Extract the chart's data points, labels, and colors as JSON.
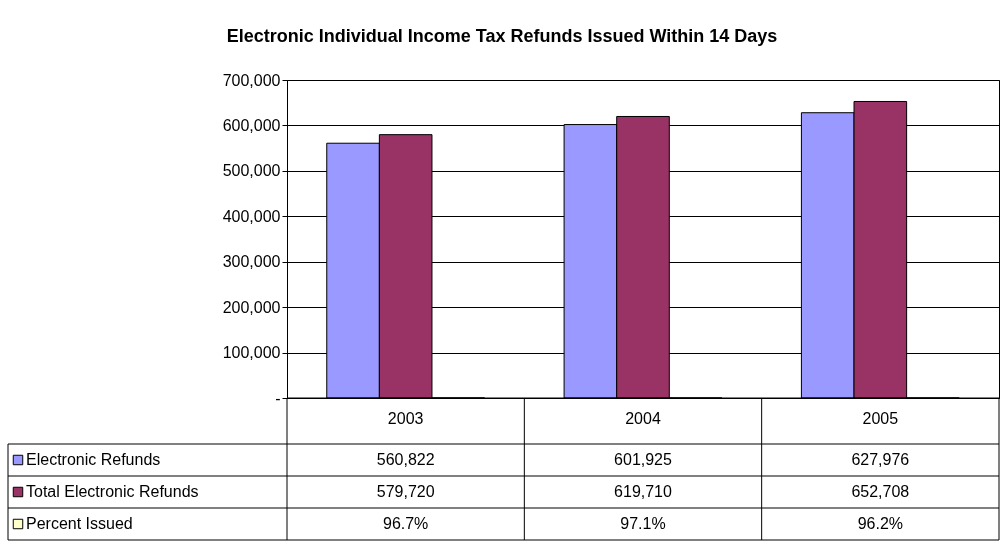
{
  "chart_data": {
    "type": "bar",
    "title": "Electronic Individual Income Tax Refunds Issued Within 14 Days",
    "categories": [
      "2003",
      "2004",
      "2005"
    ],
    "series": [
      {
        "name": "Electronic Refunds",
        "color": "#9999ff",
        "values": [
          560822,
          601925,
          627976
        ],
        "value_labels": [
          "560,822",
          "601,925",
          "627,976"
        ]
      },
      {
        "name": "Total Electronic Refunds",
        "color": "#993366",
        "values": [
          579720,
          619710,
          652708
        ],
        "value_labels": [
          "579,720",
          "619,710",
          "652,708"
        ]
      },
      {
        "name": "Percent Issued",
        "color": "#ffffcc",
        "values": [
          96.7,
          97.1,
          96.2
        ],
        "value_labels": [
          "96.7%",
          "97.1%",
          "96.2%"
        ]
      }
    ],
    "ylim": [
      0,
      700000
    ],
    "yticks": [
      {
        "value": 0,
        "label": "-"
      },
      {
        "value": 100000,
        "label": "100,000"
      },
      {
        "value": 200000,
        "label": "200,000"
      },
      {
        "value": 300000,
        "label": "300,000"
      },
      {
        "value": 400000,
        "label": "400,000"
      },
      {
        "value": 500000,
        "label": "500,000"
      },
      {
        "value": 600000,
        "label": "600,000"
      },
      {
        "value": 700000,
        "label": "700,000"
      }
    ],
    "grid": "y",
    "legend": "bottom left"
  }
}
